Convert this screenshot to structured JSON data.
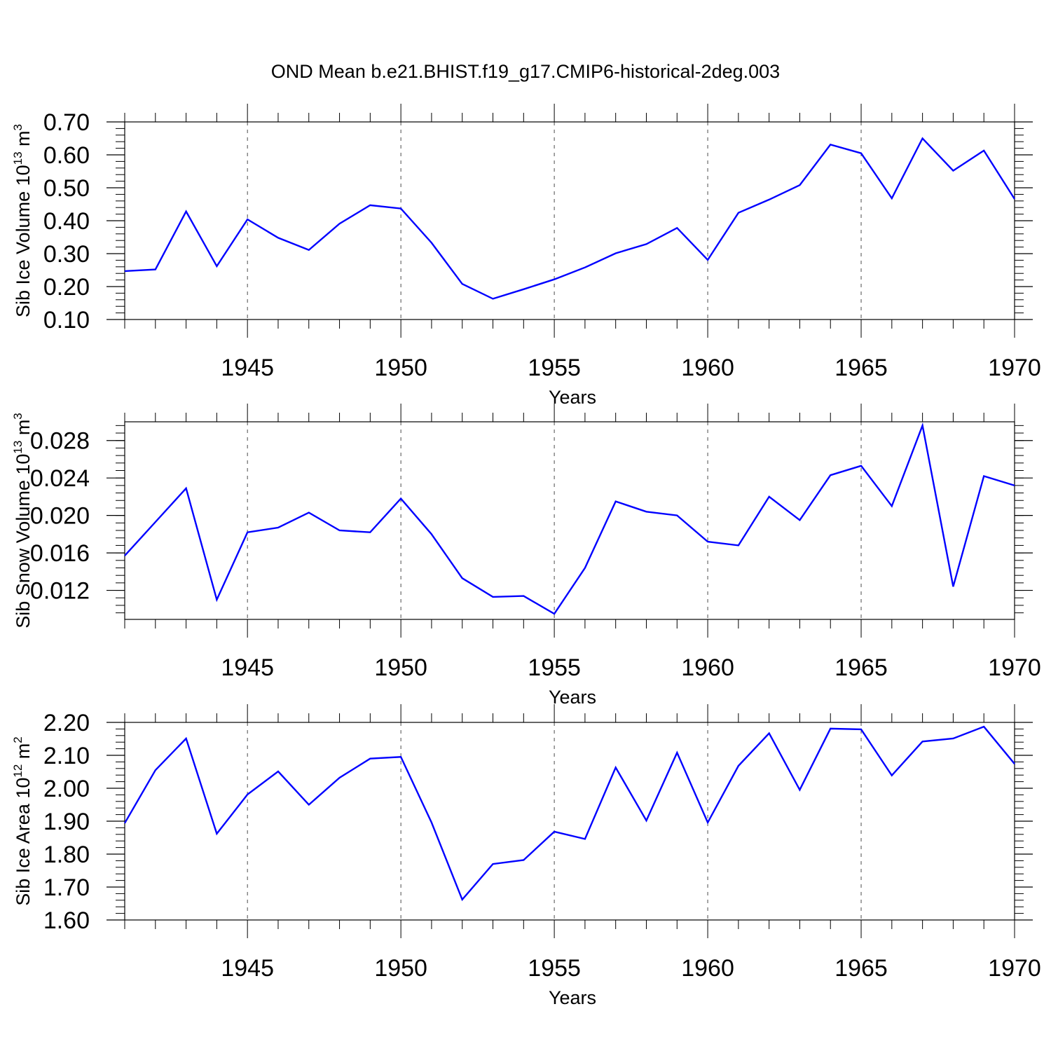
{
  "title": "OND Mean b.e21.BHIST.f19_g17.CMIP6-historical-2deg.003",
  "colors": {
    "line": "#0000ff",
    "axes": "#000000",
    "grid": "#000000"
  },
  "chart_data": [
    {
      "type": "line",
      "name": "sib-ice-volume",
      "ylabel": {
        "text": "Sib Ice Volume 10",
        "exponent": "13",
        "unit": " m",
        "unit_exponent": "3"
      },
      "xlabel": "Years",
      "xlim": [
        1941,
        1970
      ],
      "ylim": [
        0.1,
        0.7
      ],
      "yticks": [
        0.1,
        0.2,
        0.3,
        0.4,
        0.5,
        0.6,
        0.7
      ],
      "ytick_labels": [
        "0.10",
        "0.20",
        "0.30",
        "0.40",
        "0.50",
        "0.60",
        "0.70"
      ],
      "yminor_step": 0.02,
      "xticks": [
        1945,
        1950,
        1955,
        1960,
        1965,
        1970
      ],
      "xtick_labels": [
        "1945",
        "1950",
        "1955",
        "1960",
        "1965",
        "1970"
      ],
      "grid": "vertical dashed at major x ticks",
      "series": [
        {
          "x": [
            1941,
            1942,
            1943,
            1944,
            1945,
            1946,
            1947,
            1948,
            1949,
            1950,
            1951,
            1952,
            1953,
            1954,
            1955,
            1956,
            1957,
            1958,
            1959,
            1960,
            1961,
            1962,
            1963,
            1964,
            1965,
            1966,
            1967,
            1968,
            1969,
            1970
          ],
          "values": [
            0.247,
            0.252,
            0.428,
            0.262,
            0.404,
            0.348,
            0.311,
            0.391,
            0.447,
            0.437,
            0.333,
            0.208,
            0.163,
            0.192,
            0.222,
            0.258,
            0.301,
            0.329,
            0.378,
            0.281,
            0.424,
            0.464,
            0.508,
            0.631,
            0.605,
            0.468,
            0.65,
            0.552,
            0.613,
            0.466
          ]
        }
      ]
    },
    {
      "type": "line",
      "name": "sib-snow-volume",
      "ylabel": {
        "text": "Sib Snow Volume 10",
        "exponent": "13",
        "unit": " m",
        "unit_exponent": "3"
      },
      "xlabel": "Years",
      "xlim": [
        1941,
        1970
      ],
      "ylim": [
        0.0089,
        0.03
      ],
      "yticks": [
        0.012,
        0.016,
        0.02,
        0.024,
        0.028
      ],
      "ytick_labels": [
        "0.012",
        "0.016",
        "0.020",
        "0.024",
        "0.028"
      ],
      "yminor_step": 0.0008,
      "xticks": [
        1945,
        1950,
        1955,
        1960,
        1965,
        1970
      ],
      "xtick_labels": [
        "1945",
        "1950",
        "1955",
        "1960",
        "1965",
        "1970"
      ],
      "grid": "vertical dashed at major x ticks",
      "series": [
        {
          "x": [
            1941,
            1942,
            1943,
            1944,
            1945,
            1946,
            1947,
            1948,
            1949,
            1950,
            1951,
            1952,
            1953,
            1954,
            1955,
            1956,
            1957,
            1958,
            1959,
            1960,
            1961,
            1962,
            1963,
            1964,
            1965,
            1966,
            1967,
            1968,
            1969,
            1970
          ],
          "values": [
            0.0157,
            0.0193,
            0.0229,
            0.011,
            0.0182,
            0.0187,
            0.0203,
            0.0184,
            0.0182,
            0.0218,
            0.018,
            0.0133,
            0.0113,
            0.0114,
            0.0095,
            0.0144,
            0.0215,
            0.0204,
            0.02,
            0.0172,
            0.0168,
            0.022,
            0.0195,
            0.0243,
            0.0253,
            0.021,
            0.0296,
            0.0124,
            0.0242,
            0.0232
          ]
        }
      ]
    },
    {
      "type": "line",
      "name": "sib-ice-area",
      "ylabel": {
        "text": "Sib Ice Area 10",
        "exponent": "12",
        "unit": " m",
        "unit_exponent": "2"
      },
      "xlabel": "Years",
      "xlim": [
        1941,
        1970
      ],
      "ylim": [
        1.6,
        2.2
      ],
      "yticks": [
        1.6,
        1.7,
        1.8,
        1.9,
        2.0,
        2.1,
        2.2
      ],
      "ytick_labels": [
        "1.60",
        "1.70",
        "1.80",
        "1.90",
        "2.00",
        "2.10",
        "2.20"
      ],
      "yminor_step": 0.02,
      "xticks": [
        1945,
        1950,
        1955,
        1960,
        1965,
        1970
      ],
      "xtick_labels": [
        "1945",
        "1950",
        "1955",
        "1960",
        "1965",
        "1970"
      ],
      "grid": "vertical dashed at major x ticks",
      "series": [
        {
          "x": [
            1941,
            1942,
            1943,
            1944,
            1945,
            1946,
            1947,
            1948,
            1949,
            1950,
            1951,
            1952,
            1953,
            1954,
            1955,
            1956,
            1957,
            1958,
            1959,
            1960,
            1961,
            1962,
            1963,
            1964,
            1965,
            1966,
            1967,
            1968,
            1969,
            1970
          ],
          "values": [
            1.894,
            2.055,
            2.151,
            1.862,
            1.981,
            2.051,
            1.95,
            2.032,
            2.09,
            2.095,
            1.896,
            1.662,
            1.77,
            1.782,
            1.868,
            1.846,
            2.063,
            1.902,
            2.108,
            1.896,
            2.068,
            2.167,
            1.995,
            2.181,
            2.179,
            2.039,
            2.142,
            2.151,
            2.187,
            2.074
          ]
        }
      ]
    }
  ]
}
